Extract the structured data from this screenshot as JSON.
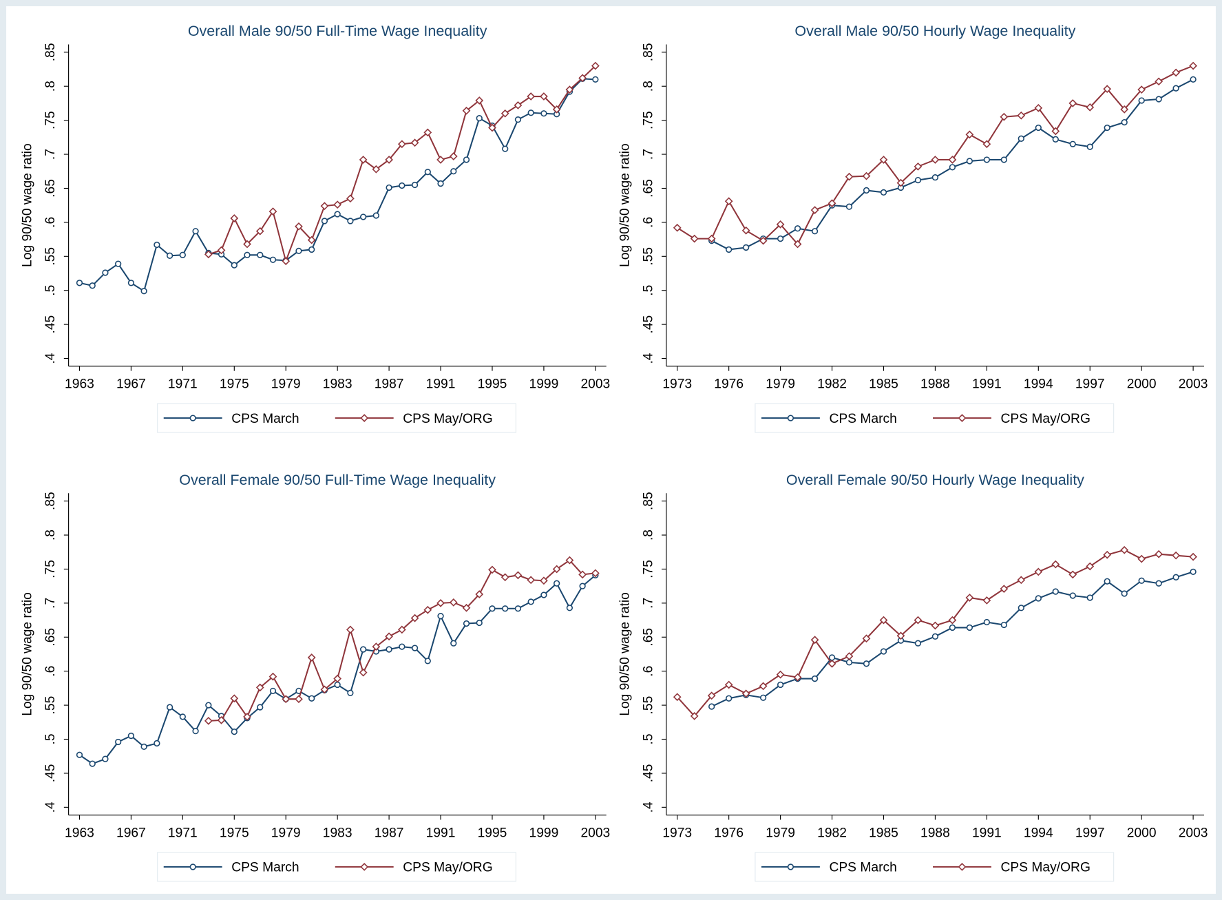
{
  "chart_data": [
    {
      "type": "line",
      "title": "Overall Male 90/50 Full-Time Wage Inequality",
      "y_label": "Log 90/50 wage ratio",
      "x": [
        1963,
        1964,
        1965,
        1966,
        1967,
        1968,
        1969,
        1970,
        1971,
        1972,
        1973,
        1974,
        1975,
        1976,
        1977,
        1978,
        1979,
        1980,
        1981,
        1982,
        1983,
        1984,
        1985,
        1986,
        1987,
        1988,
        1989,
        1990,
        1991,
        1992,
        1993,
        1994,
        1995,
        1996,
        1997,
        1998,
        1999,
        2000,
        2001,
        2002,
        2003
      ],
      "xlim": [
        1963,
        2003
      ],
      "xticks": [
        1963,
        1967,
        1971,
        1975,
        1979,
        1983,
        1987,
        1991,
        1995,
        1999,
        2003
      ],
      "ylim": [
        0.4,
        0.85
      ],
      "yticks": [
        {
          "value": 0.4,
          "label": ".4"
        },
        {
          "value": 0.45,
          "label": ".45"
        },
        {
          "value": 0.5,
          "label": ".5"
        },
        {
          "value": 0.55,
          "label": ".55"
        },
        {
          "value": 0.6,
          "label": ".6"
        },
        {
          "value": 0.65,
          "label": ".65"
        },
        {
          "value": 0.7,
          "label": ".7"
        },
        {
          "value": 0.75,
          "label": ".75"
        },
        {
          "value": 0.8,
          "label": ".8"
        },
        {
          "value": 0.85,
          "label": ".85"
        }
      ],
      "series": [
        {
          "name": "CPS March",
          "color": "#1a476f",
          "marker": "circle",
          "values": [
            0.511,
            0.507,
            0.526,
            0.539,
            0.511,
            0.499,
            0.567,
            0.551,
            0.552,
            0.587,
            0.555,
            0.553,
            0.537,
            0.552,
            0.552,
            0.545,
            0.544,
            0.558,
            0.56,
            0.602,
            0.612,
            0.602,
            0.608,
            0.61,
            0.651,
            0.654,
            0.655,
            0.674,
            0.657,
            0.675,
            0.692,
            0.753,
            0.742,
            0.708,
            0.751,
            0.761,
            0.76,
            0.759,
            0.792,
            0.811,
            0.81
          ]
        },
        {
          "name": "CPS May/ORG",
          "color": "#90353b",
          "marker": "diamond",
          "values": [
            null,
            null,
            null,
            null,
            null,
            null,
            null,
            null,
            null,
            null,
            0.553,
            0.559,
            0.606,
            0.568,
            0.587,
            0.616,
            0.543,
            0.594,
            0.574,
            0.624,
            0.626,
            0.635,
            0.692,
            0.678,
            0.692,
            0.715,
            0.717,
            0.732,
            0.692,
            0.697,
            0.764,
            0.779,
            0.739,
            0.76,
            0.772,
            0.785,
            0.785,
            0.766,
            0.795,
            0.812,
            0.83
          ]
        }
      ]
    },
    {
      "type": "line",
      "title": "Overall Male 90/50 Hourly Wage Inequality",
      "y_label": "Log 90/50 wage ratio",
      "x": [
        1973,
        1974,
        1975,
        1976,
        1977,
        1978,
        1979,
        1980,
        1981,
        1982,
        1983,
        1984,
        1985,
        1986,
        1987,
        1988,
        1989,
        1990,
        1991,
        1992,
        1993,
        1994,
        1995,
        1996,
        1997,
        1998,
        1999,
        2000,
        2001,
        2002,
        2003
      ],
      "xlim": [
        1973,
        2003
      ],
      "xticks": [
        1973,
        1976,
        1979,
        1982,
        1985,
        1988,
        1991,
        1994,
        1997,
        2000,
        2003
      ],
      "ylim": [
        0.4,
        0.85
      ],
      "yticks": [
        {
          "value": 0.4,
          "label": ".4"
        },
        {
          "value": 0.45,
          "label": ".45"
        },
        {
          "value": 0.5,
          "label": ".5"
        },
        {
          "value": 0.55,
          "label": ".55"
        },
        {
          "value": 0.6,
          "label": ".6"
        },
        {
          "value": 0.65,
          "label": ".65"
        },
        {
          "value": 0.7,
          "label": ".7"
        },
        {
          "value": 0.75,
          "label": ".75"
        },
        {
          "value": 0.8,
          "label": ".8"
        },
        {
          "value": 0.85,
          "label": ".85"
        }
      ],
      "series": [
        {
          "name": "CPS March",
          "color": "#1a476f",
          "marker": "circle",
          "values": [
            null,
            null,
            0.573,
            0.56,
            0.563,
            0.576,
            0.576,
            0.591,
            0.587,
            0.625,
            0.623,
            0.647,
            0.644,
            0.651,
            0.662,
            0.666,
            0.681,
            0.69,
            0.692,
            0.692,
            0.723,
            0.739,
            0.722,
            0.715,
            0.711,
            0.739,
            0.747,
            0.779,
            0.781,
            0.797,
            0.81
          ]
        },
        {
          "name": "CPS May/ORG",
          "color": "#90353b",
          "marker": "diamond",
          "values": [
            0.592,
            0.576,
            0.576,
            0.631,
            0.588,
            0.573,
            0.597,
            0.568,
            0.618,
            0.628,
            0.667,
            0.668,
            0.692,
            0.658,
            0.682,
            0.692,
            0.692,
            0.729,
            0.715,
            0.755,
            0.757,
            0.768,
            0.734,
            0.775,
            0.769,
            0.796,
            0.766,
            0.795,
            0.807,
            0.82,
            0.83
          ]
        }
      ]
    },
    {
      "type": "line",
      "title": "Overall Female 90/50 Full-Time Wage Inequality",
      "y_label": "Log 90/50 wage ratio",
      "x": [
        1963,
        1964,
        1965,
        1966,
        1967,
        1968,
        1969,
        1970,
        1971,
        1972,
        1973,
        1974,
        1975,
        1976,
        1977,
        1978,
        1979,
        1980,
        1981,
        1982,
        1983,
        1984,
        1985,
        1986,
        1987,
        1988,
        1989,
        1990,
        1991,
        1992,
        1993,
        1994,
        1995,
        1996,
        1997,
        1998,
        1999,
        2000,
        2001,
        2002,
        2003
      ],
      "xlim": [
        1963,
        2003
      ],
      "xticks": [
        1963,
        1967,
        1971,
        1975,
        1979,
        1983,
        1987,
        1991,
        1995,
        1999,
        2003
      ],
      "ylim": [
        0.4,
        0.85
      ],
      "yticks": [
        {
          "value": 0.4,
          "label": ".4"
        },
        {
          "value": 0.45,
          "label": ".45"
        },
        {
          "value": 0.5,
          "label": ".5"
        },
        {
          "value": 0.55,
          "label": ".55"
        },
        {
          "value": 0.6,
          "label": ".6"
        },
        {
          "value": 0.65,
          "label": ".65"
        },
        {
          "value": 0.7,
          "label": ".7"
        },
        {
          "value": 0.75,
          "label": ".75"
        },
        {
          "value": 0.8,
          "label": ".8"
        },
        {
          "value": 0.85,
          "label": ".85"
        }
      ],
      "series": [
        {
          "name": "CPS March",
          "color": "#1a476f",
          "marker": "circle",
          "values": [
            0.477,
            0.464,
            0.471,
            0.496,
            0.505,
            0.489,
            0.494,
            0.547,
            0.533,
            0.512,
            0.55,
            0.534,
            0.511,
            0.531,
            0.547,
            0.571,
            0.559,
            0.571,
            0.56,
            0.572,
            0.58,
            0.568,
            0.632,
            0.629,
            0.632,
            0.636,
            0.634,
            0.615,
            0.681,
            0.641,
            0.67,
            0.671,
            0.692,
            0.692,
            0.692,
            0.702,
            0.712,
            0.729,
            0.693,
            0.725,
            0.741
          ]
        },
        {
          "name": "CPS May/ORG",
          "color": "#90353b",
          "marker": "diamond",
          "values": [
            null,
            null,
            null,
            null,
            null,
            null,
            null,
            null,
            null,
            null,
            0.527,
            0.528,
            0.56,
            0.533,
            0.576,
            0.592,
            0.559,
            0.559,
            0.62,
            0.573,
            0.589,
            0.661,
            0.598,
            0.636,
            0.651,
            0.661,
            0.678,
            0.69,
            0.7,
            0.701,
            0.693,
            0.713,
            0.749,
            0.738,
            0.741,
            0.734,
            0.733,
            0.75,
            0.763,
            0.742,
            0.744
          ]
        }
      ]
    },
    {
      "type": "line",
      "title": "Overall Female 90/50 Hourly Wage Inequality",
      "y_label": "Log 90/50 wage ratio",
      "x": [
        1973,
        1974,
        1975,
        1976,
        1977,
        1978,
        1979,
        1980,
        1981,
        1982,
        1983,
        1984,
        1985,
        1986,
        1987,
        1988,
        1989,
        1990,
        1991,
        1992,
        1993,
        1994,
        1995,
        1996,
        1997,
        1998,
        1999,
        2000,
        2001,
        2002,
        2003
      ],
      "xlim": [
        1973,
        2003
      ],
      "xticks": [
        1973,
        1976,
        1979,
        1982,
        1985,
        1988,
        1991,
        1994,
        1997,
        2000,
        2003
      ],
      "ylim": [
        0.4,
        0.85
      ],
      "yticks": [
        {
          "value": 0.4,
          "label": ".4"
        },
        {
          "value": 0.45,
          "label": ".45"
        },
        {
          "value": 0.5,
          "label": ".5"
        },
        {
          "value": 0.55,
          "label": ".55"
        },
        {
          "value": 0.6,
          "label": ".6"
        },
        {
          "value": 0.65,
          "label": ".65"
        },
        {
          "value": 0.7,
          "label": ".7"
        },
        {
          "value": 0.75,
          "label": ".75"
        },
        {
          "value": 0.8,
          "label": ".8"
        },
        {
          "value": 0.85,
          "label": ".85"
        }
      ],
      "series": [
        {
          "name": "CPS March",
          "color": "#1a476f",
          "marker": "circle",
          "values": [
            null,
            null,
            0.548,
            0.56,
            0.565,
            0.561,
            0.58,
            0.589,
            0.589,
            0.62,
            0.613,
            0.611,
            0.629,
            0.645,
            0.641,
            0.651,
            0.664,
            0.664,
            0.672,
            0.668,
            0.693,
            0.707,
            0.717,
            0.711,
            0.708,
            0.732,
            0.714,
            0.733,
            0.729,
            0.738,
            0.746
          ]
        },
        {
          "name": "CPS May/ORG",
          "color": "#90353b",
          "marker": "diamond",
          "values": [
            0.562,
            0.534,
            0.564,
            0.58,
            0.567,
            0.578,
            0.595,
            0.591,
            0.646,
            0.611,
            0.622,
            0.648,
            0.675,
            0.652,
            0.675,
            0.667,
            0.675,
            0.708,
            0.704,
            0.721,
            0.734,
            0.746,
            0.757,
            0.742,
            0.754,
            0.771,
            0.778,
            0.765,
            0.772,
            0.77,
            0.768
          ]
        }
      ]
    }
  ]
}
